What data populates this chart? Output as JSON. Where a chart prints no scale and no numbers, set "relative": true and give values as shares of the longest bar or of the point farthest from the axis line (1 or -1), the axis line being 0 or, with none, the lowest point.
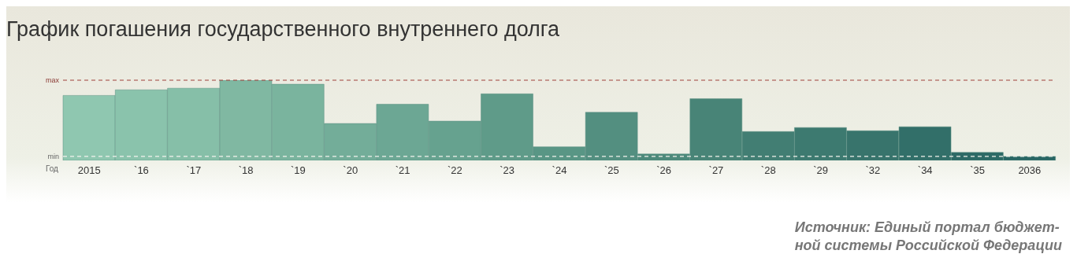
{
  "chart_data": {
    "type": "bar",
    "title": "График погашения государственного внутреннего долга",
    "xlabel": "Год",
    "relative": true,
    "categories": [
      "2015",
      "`16",
      "`17",
      "`18",
      "`19",
      "`20",
      "`21",
      "`22",
      "`23",
      "`24",
      "`25",
      "`26",
      "`27",
      "`28",
      "`29",
      "`32",
      "`34",
      "`35",
      "2036"
    ],
    "values": [
      0.81,
      0.88,
      0.9,
      1,
      0.95,
      0.46,
      0.7,
      0.49,
      0.83,
      0.17,
      0.6,
      0.08,
      0.77,
      0.36,
      0.41,
      0.37,
      0.42,
      0.1,
      0.05
    ],
    "colors": [
      "#8fc7b0",
      "#8ac3ac",
      "#86bfa8",
      "#80b8a2",
      "#7ab49e",
      "#73ad99",
      "#6ca794",
      "#66a28f",
      "#5f9b89",
      "#599685",
      "#538f80",
      "#4d8a7b",
      "#488477",
      "#427e73",
      "#3d7a70",
      "#38746c",
      "#326f69",
      "#2d6a66",
      "#296664"
    ],
    "ref_lines": [
      {
        "axis": "y",
        "value": 1,
        "label": "max",
        "color": "#a0403a",
        "line_style": "dashed"
      },
      {
        "axis": "y",
        "value": 0.05,
        "label": "min",
        "color": "#f4f4ee",
        "line_style": "dashed"
      }
    ],
    "annotations": [
      "Источник: Единый портал бюджет-\nной системы Российской Федерации"
    ]
  }
}
